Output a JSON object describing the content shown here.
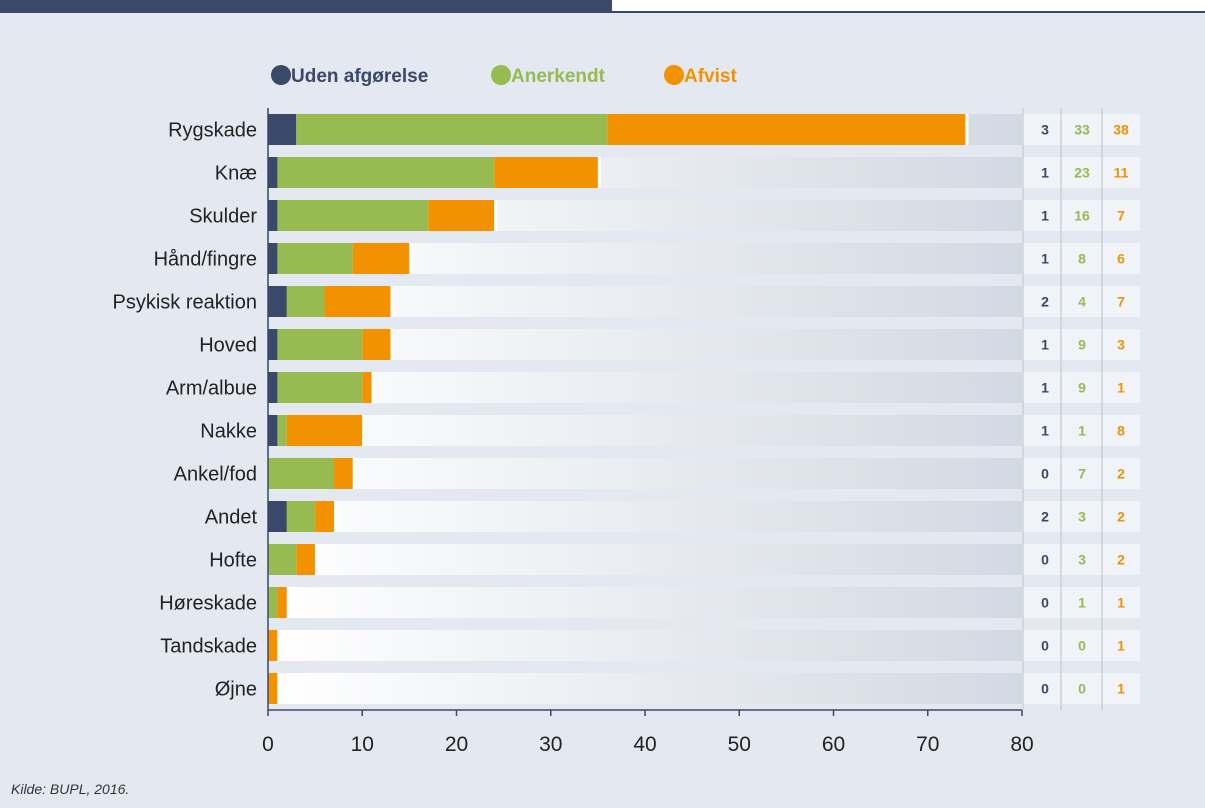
{
  "source_note": "Kilde: BUPL, 2016.",
  "colors": {
    "uden": "#3a4869",
    "anerkendt": "#97ba51",
    "afvist": "#f29200",
    "background": "#e4e9f1",
    "track": "#d2d9e2"
  },
  "chart_data": {
    "type": "bar",
    "orientation": "horizontal",
    "stacked": true,
    "title": "",
    "xlabel": "",
    "ylabel": "",
    "xlim": [
      0,
      80
    ],
    "xticks": [
      0,
      10,
      20,
      30,
      40,
      50,
      60,
      70,
      80
    ],
    "grid": false,
    "legend_position": "top",
    "categories": [
      "Rygskade",
      "Knæ",
      "Skulder",
      "Hånd/fingre",
      "Psykisk reaktion",
      "Hoved",
      "Arm/albue",
      "Nakke",
      "Ankel/fod",
      "Andet",
      "Hofte",
      "Høreskade",
      "Tandskade",
      "Øjne"
    ],
    "series": [
      {
        "name": "Uden afgørelse",
        "color": "#3a4869",
        "values": [
          3,
          1,
          1,
          1,
          2,
          1,
          1,
          1,
          0,
          2,
          0,
          0,
          0,
          0
        ]
      },
      {
        "name": "Anerkendt",
        "color": "#97ba51",
        "values": [
          33,
          23,
          16,
          8,
          4,
          9,
          9,
          1,
          7,
          3,
          3,
          1,
          0,
          0
        ]
      },
      {
        "name": "Afvist",
        "color": "#f29200",
        "values": [
          38,
          11,
          7,
          6,
          7,
          3,
          1,
          8,
          2,
          2,
          2,
          1,
          1,
          1
        ]
      }
    ]
  }
}
